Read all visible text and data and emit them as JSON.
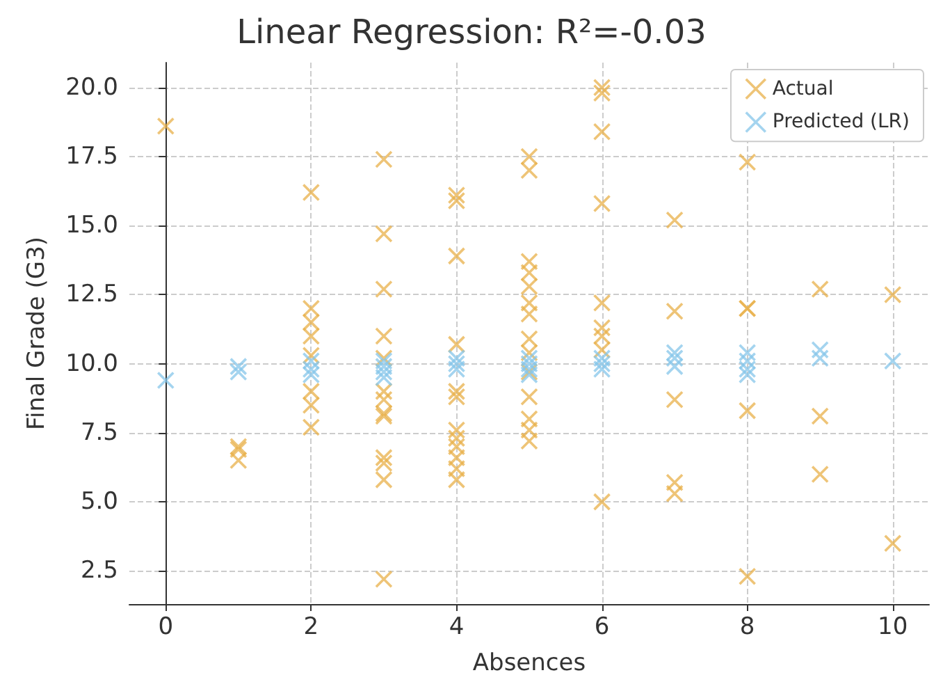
{
  "chart_data": {
    "type": "scatter",
    "title": "Linear Regression: R²=-0.03",
    "xlabel": "Absences",
    "ylabel": "Final Grade (G3)",
    "xlim": [
      -0.5,
      10.5
    ],
    "xticks": [
      0,
      2,
      4,
      6,
      8,
      10
    ],
    "ylim": [
      1.3,
      20.9
    ],
    "yticks": [
      2.5,
      {
        "value": 5,
        "label": "5.0"
      },
      7.5,
      {
        "value": 10,
        "label": "10.0"
      },
      12.5,
      {
        "value": 15,
        "label": "15.0"
      },
      17.5,
      {
        "value": 20,
        "label": "20.0"
      }
    ],
    "grid": true,
    "legend": "top right",
    "marker": "cross",
    "series": [
      {
        "name": "Actual",
        "color": "#e8b04a",
        "x": [
          0,
          1,
          1,
          1,
          2,
          2,
          2,
          2,
          2,
          2,
          2,
          2,
          3,
          3,
          3,
          3,
          3,
          3,
          3,
          3,
          3,
          3,
          3,
          3,
          3,
          4,
          4,
          4,
          4,
          4,
          4,
          4,
          4,
          4,
          4,
          4,
          4,
          5,
          5,
          5,
          5,
          5,
          5,
          5,
          5,
          5,
          5,
          5,
          5,
          5,
          5,
          6,
          6,
          6,
          6,
          6,
          6,
          6,
          6,
          6,
          7,
          7,
          7,
          7,
          7,
          8,
          8,
          8,
          8,
          8,
          9,
          9,
          9,
          10,
          10
        ],
        "values": [
          18.6,
          7.0,
          6.9,
          6.5,
          16.2,
          12.0,
          11.5,
          11.0,
          10.3,
          9.0,
          8.5,
          7.7,
          17.4,
          14.7,
          12.7,
          11.0,
          10.2,
          9.0,
          8.7,
          8.2,
          8.1,
          6.6,
          6.4,
          5.8,
          2.2,
          16.1,
          15.9,
          13.9,
          10.7,
          9.0,
          8.8,
          7.6,
          7.3,
          7.0,
          6.6,
          6.2,
          5.8,
          17.5,
          17.0,
          13.7,
          13.3,
          12.8,
          12.2,
          11.8,
          10.9,
          10.4,
          9.7,
          8.8,
          8.0,
          7.6,
          7.2,
          20.0,
          19.8,
          18.4,
          15.8,
          12.2,
          11.3,
          11.0,
          10.5,
          5.0,
          15.2,
          11.9,
          8.7,
          5.7,
          5.3,
          17.3,
          12.0,
          12.0,
          8.3,
          2.3,
          12.7,
          8.1,
          6.0,
          12.5,
          3.5
        ]
      },
      {
        "name": "Predicted (LR)",
        "color": "#86c5ea",
        "x": [
          0,
          1,
          1,
          2,
          2,
          2,
          3,
          3,
          3,
          3,
          4,
          4,
          4,
          5,
          5,
          5,
          5,
          6,
          6,
          6,
          7,
          7,
          7,
          8,
          8,
          8,
          8,
          9,
          9,
          10
        ],
        "values": [
          9.4,
          9.9,
          9.7,
          10.1,
          9.8,
          9.6,
          10.1,
          9.9,
          9.7,
          9.5,
          10.2,
          10.0,
          9.8,
          10.2,
          10.0,
          9.8,
          9.6,
          10.2,
          10.0,
          9.8,
          10.4,
          10.2,
          9.9,
          10.4,
          10.1,
          9.8,
          9.6,
          10.5,
          10.2,
          10.1
        ]
      }
    ]
  }
}
